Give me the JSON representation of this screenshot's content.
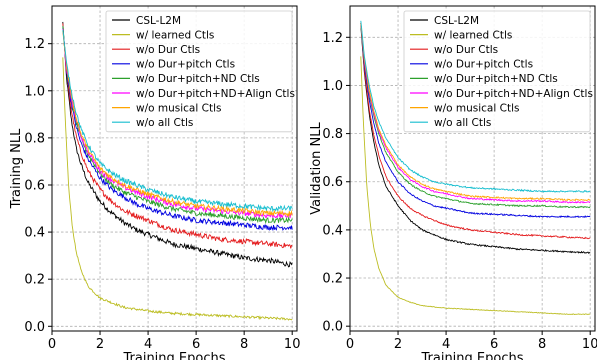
{
  "chart_data": [
    {
      "type": "line",
      "title": "",
      "xlabel": "Training Epochs",
      "ylabel": "Training NLL",
      "xlim": [
        0,
        10.2
      ],
      "ylim": [
        -0.02,
        1.36
      ],
      "xticks": [
        "0",
        "2",
        "4",
        "6",
        "8",
        "10"
      ],
      "yticks": [
        "0.0",
        "0.2",
        "0.4",
        "0.6",
        "0.8",
        "1.0",
        "1.2"
      ],
      "grid": true,
      "legend": "top-right",
      "noise": "high",
      "series": [
        {
          "name": "CSL-L2M",
          "color": "#000000",
          "x": [
            0.45,
            0.6,
            0.8,
            1,
            1.2,
            1.5,
            2,
            2.5,
            3,
            3.5,
            4,
            5,
            6,
            7,
            8,
            9,
            10
          ],
          "y": [
            1.29,
            1.06,
            0.88,
            0.76,
            0.69,
            0.61,
            0.53,
            0.48,
            0.44,
            0.41,
            0.39,
            0.35,
            0.33,
            0.31,
            0.29,
            0.28,
            0.26
          ]
        },
        {
          "name": "w/ learned Ctls",
          "color": "#bcbd22",
          "x": [
            0.45,
            0.55,
            0.7,
            0.85,
            1,
            1.2,
            1.5,
            2,
            2.5,
            3,
            4,
            5,
            6,
            7,
            8,
            9,
            10
          ],
          "y": [
            1.14,
            0.88,
            0.58,
            0.42,
            0.32,
            0.24,
            0.17,
            0.12,
            0.1,
            0.08,
            0.065,
            0.055,
            0.05,
            0.045,
            0.04,
            0.035,
            0.03
          ]
        },
        {
          "name": "w/o Dur Ctls",
          "color": "#e41a1c",
          "x": [
            0.45,
            0.6,
            0.8,
            1,
            1.2,
            1.5,
            2,
            2.5,
            3,
            3.5,
            4,
            5,
            6,
            7,
            8,
            9,
            10
          ],
          "y": [
            1.28,
            1.08,
            0.92,
            0.81,
            0.74,
            0.66,
            0.58,
            0.53,
            0.49,
            0.47,
            0.45,
            0.41,
            0.39,
            0.37,
            0.36,
            0.35,
            0.34
          ]
        },
        {
          "name": "w/o Dur+pitch Ctls",
          "color": "#0000e0",
          "x": [
            0.45,
            0.6,
            0.8,
            1,
            1.2,
            1.5,
            2,
            2.5,
            3,
            3.5,
            4,
            5,
            6,
            7,
            8,
            9,
            10
          ],
          "y": [
            1.27,
            1.09,
            0.95,
            0.85,
            0.78,
            0.71,
            0.63,
            0.58,
            0.55,
            0.52,
            0.5,
            0.47,
            0.45,
            0.44,
            0.43,
            0.42,
            0.42
          ]
        },
        {
          "name": "w/o Dur+pitch+ND Ctls",
          "color": "#2ca02c",
          "x": [
            0.45,
            0.6,
            0.8,
            1,
            1.2,
            1.5,
            2,
            2.5,
            3,
            3.5,
            4,
            5,
            6,
            7,
            8,
            9,
            10
          ],
          "y": [
            1.27,
            1.1,
            0.96,
            0.87,
            0.8,
            0.73,
            0.65,
            0.6,
            0.57,
            0.55,
            0.53,
            0.5,
            0.48,
            0.47,
            0.46,
            0.45,
            0.45
          ]
        },
        {
          "name": "w/o Dur+pitch+ND+Align Ctls",
          "color": "#ff00ff",
          "x": [
            0.45,
            0.6,
            0.8,
            1,
            1.2,
            1.5,
            2,
            2.5,
            3,
            3.5,
            4,
            5,
            6,
            7,
            8,
            9,
            10
          ],
          "y": [
            1.26,
            1.1,
            0.97,
            0.88,
            0.81,
            0.74,
            0.66,
            0.62,
            0.59,
            0.57,
            0.55,
            0.52,
            0.5,
            0.49,
            0.48,
            0.47,
            0.47
          ]
        },
        {
          "name": "w/o musical Ctls",
          "color": "#ffa500",
          "x": [
            0.45,
            0.6,
            0.8,
            1,
            1.2,
            1.5,
            2,
            2.5,
            3,
            3.5,
            4,
            5,
            6,
            7,
            8,
            9,
            10
          ],
          "y": [
            1.26,
            1.11,
            0.98,
            0.89,
            0.82,
            0.75,
            0.67,
            0.63,
            0.6,
            0.58,
            0.56,
            0.53,
            0.51,
            0.5,
            0.49,
            0.48,
            0.48
          ]
        },
        {
          "name": "w/o all Ctls",
          "color": "#17becf",
          "x": [
            0.45,
            0.6,
            0.8,
            1,
            1.2,
            1.5,
            2,
            2.5,
            3,
            3.5,
            4,
            5,
            6,
            7,
            8,
            9,
            10
          ],
          "y": [
            1.26,
            1.12,
            1.0,
            0.91,
            0.84,
            0.77,
            0.69,
            0.65,
            0.62,
            0.6,
            0.58,
            0.55,
            0.53,
            0.52,
            0.51,
            0.5,
            0.5
          ]
        }
      ]
    },
    {
      "type": "line",
      "title": "",
      "xlabel": "Training Epochs",
      "ylabel": "Validation NLL",
      "xlim": [
        0,
        10.2
      ],
      "ylim": [
        -0.02,
        1.33
      ],
      "xticks": [
        "0",
        "2",
        "4",
        "6",
        "8",
        "10"
      ],
      "yticks": [
        "0.0",
        "0.2",
        "0.4",
        "0.6",
        "0.8",
        "1.0",
        "1.2"
      ],
      "grid": true,
      "legend": "top-right",
      "noise": "low",
      "series": [
        {
          "name": "CSL-L2M",
          "color": "#000000",
          "x": [
            0.45,
            0.6,
            0.8,
            1,
            1.2,
            1.5,
            2,
            2.5,
            3,
            3.5,
            4,
            5,
            6,
            7,
            8,
            9,
            10
          ],
          "y": [
            1.25,
            1.05,
            0.88,
            0.76,
            0.67,
            0.58,
            0.5,
            0.44,
            0.4,
            0.38,
            0.36,
            0.34,
            0.33,
            0.32,
            0.315,
            0.31,
            0.305
          ]
        },
        {
          "name": "w/ learned Ctls",
          "color": "#bcbd22",
          "x": [
            0.45,
            0.55,
            0.7,
            0.85,
            1,
            1.2,
            1.5,
            2,
            2.5,
            3,
            4,
            5,
            6,
            7,
            8,
            9,
            10
          ],
          "y": [
            1.12,
            0.86,
            0.58,
            0.42,
            0.32,
            0.24,
            0.17,
            0.12,
            0.1,
            0.085,
            0.075,
            0.07,
            0.065,
            0.06,
            0.055,
            0.05,
            0.05
          ]
        },
        {
          "name": "w/o Dur Ctls",
          "color": "#e41a1c",
          "x": [
            0.45,
            0.6,
            0.8,
            1,
            1.2,
            1.5,
            2,
            2.5,
            3,
            3.5,
            4,
            5,
            6,
            7,
            8,
            9,
            10
          ],
          "y": [
            1.26,
            1.06,
            0.9,
            0.79,
            0.71,
            0.62,
            0.54,
            0.49,
            0.46,
            0.44,
            0.42,
            0.4,
            0.39,
            0.38,
            0.375,
            0.37,
            0.365
          ]
        },
        {
          "name": "w/o Dur+pitch Ctls",
          "color": "#0000e0",
          "x": [
            0.45,
            0.6,
            0.8,
            1,
            1.2,
            1.5,
            2,
            2.5,
            3,
            3.5,
            4,
            5,
            6,
            7,
            8,
            9,
            10
          ],
          "y": [
            1.26,
            1.08,
            0.94,
            0.84,
            0.76,
            0.68,
            0.6,
            0.55,
            0.52,
            0.5,
            0.49,
            0.47,
            0.465,
            0.46,
            0.455,
            0.455,
            0.455
          ]
        },
        {
          "name": "w/o Dur+pitch+ND Ctls",
          "color": "#2ca02c",
          "x": [
            0.45,
            0.6,
            0.8,
            1,
            1.2,
            1.5,
            2,
            2.5,
            3,
            3.5,
            4,
            5,
            6,
            7,
            8,
            9,
            10
          ],
          "y": [
            1.26,
            1.09,
            0.96,
            0.87,
            0.8,
            0.72,
            0.64,
            0.59,
            0.56,
            0.54,
            0.53,
            0.51,
            0.505,
            0.5,
            0.5,
            0.495,
            0.495
          ]
        },
        {
          "name": "w/o Dur+pitch+ND+Align Ctls",
          "color": "#ff00ff",
          "x": [
            0.45,
            0.6,
            0.8,
            1,
            1.2,
            1.5,
            2,
            2.5,
            3,
            3.5,
            4,
            5,
            6,
            7,
            8,
            9,
            10
          ],
          "y": [
            1.26,
            1.1,
            0.97,
            0.88,
            0.81,
            0.74,
            0.66,
            0.61,
            0.58,
            0.56,
            0.55,
            0.53,
            0.525,
            0.52,
            0.52,
            0.515,
            0.515
          ]
        },
        {
          "name": "w/o musical Ctls",
          "color": "#ffa500",
          "x": [
            0.45,
            0.6,
            0.8,
            1,
            1.2,
            1.5,
            2,
            2.5,
            3,
            3.5,
            4,
            5,
            6,
            7,
            8,
            9,
            10
          ],
          "y": [
            1.26,
            1.11,
            0.98,
            0.89,
            0.82,
            0.75,
            0.67,
            0.62,
            0.59,
            0.57,
            0.56,
            0.54,
            0.535,
            0.53,
            0.53,
            0.525,
            0.525
          ]
        },
        {
          "name": "w/o all Ctls",
          "color": "#17becf",
          "x": [
            0.45,
            0.6,
            0.8,
            1,
            1.2,
            1.5,
            2,
            2.5,
            3,
            3.5,
            4,
            5,
            6,
            7,
            8,
            9,
            10
          ],
          "y": [
            1.27,
            1.12,
            1.0,
            0.91,
            0.85,
            0.78,
            0.7,
            0.65,
            0.62,
            0.6,
            0.59,
            0.575,
            0.57,
            0.565,
            0.56,
            0.56,
            0.56
          ]
        }
      ]
    }
  ]
}
